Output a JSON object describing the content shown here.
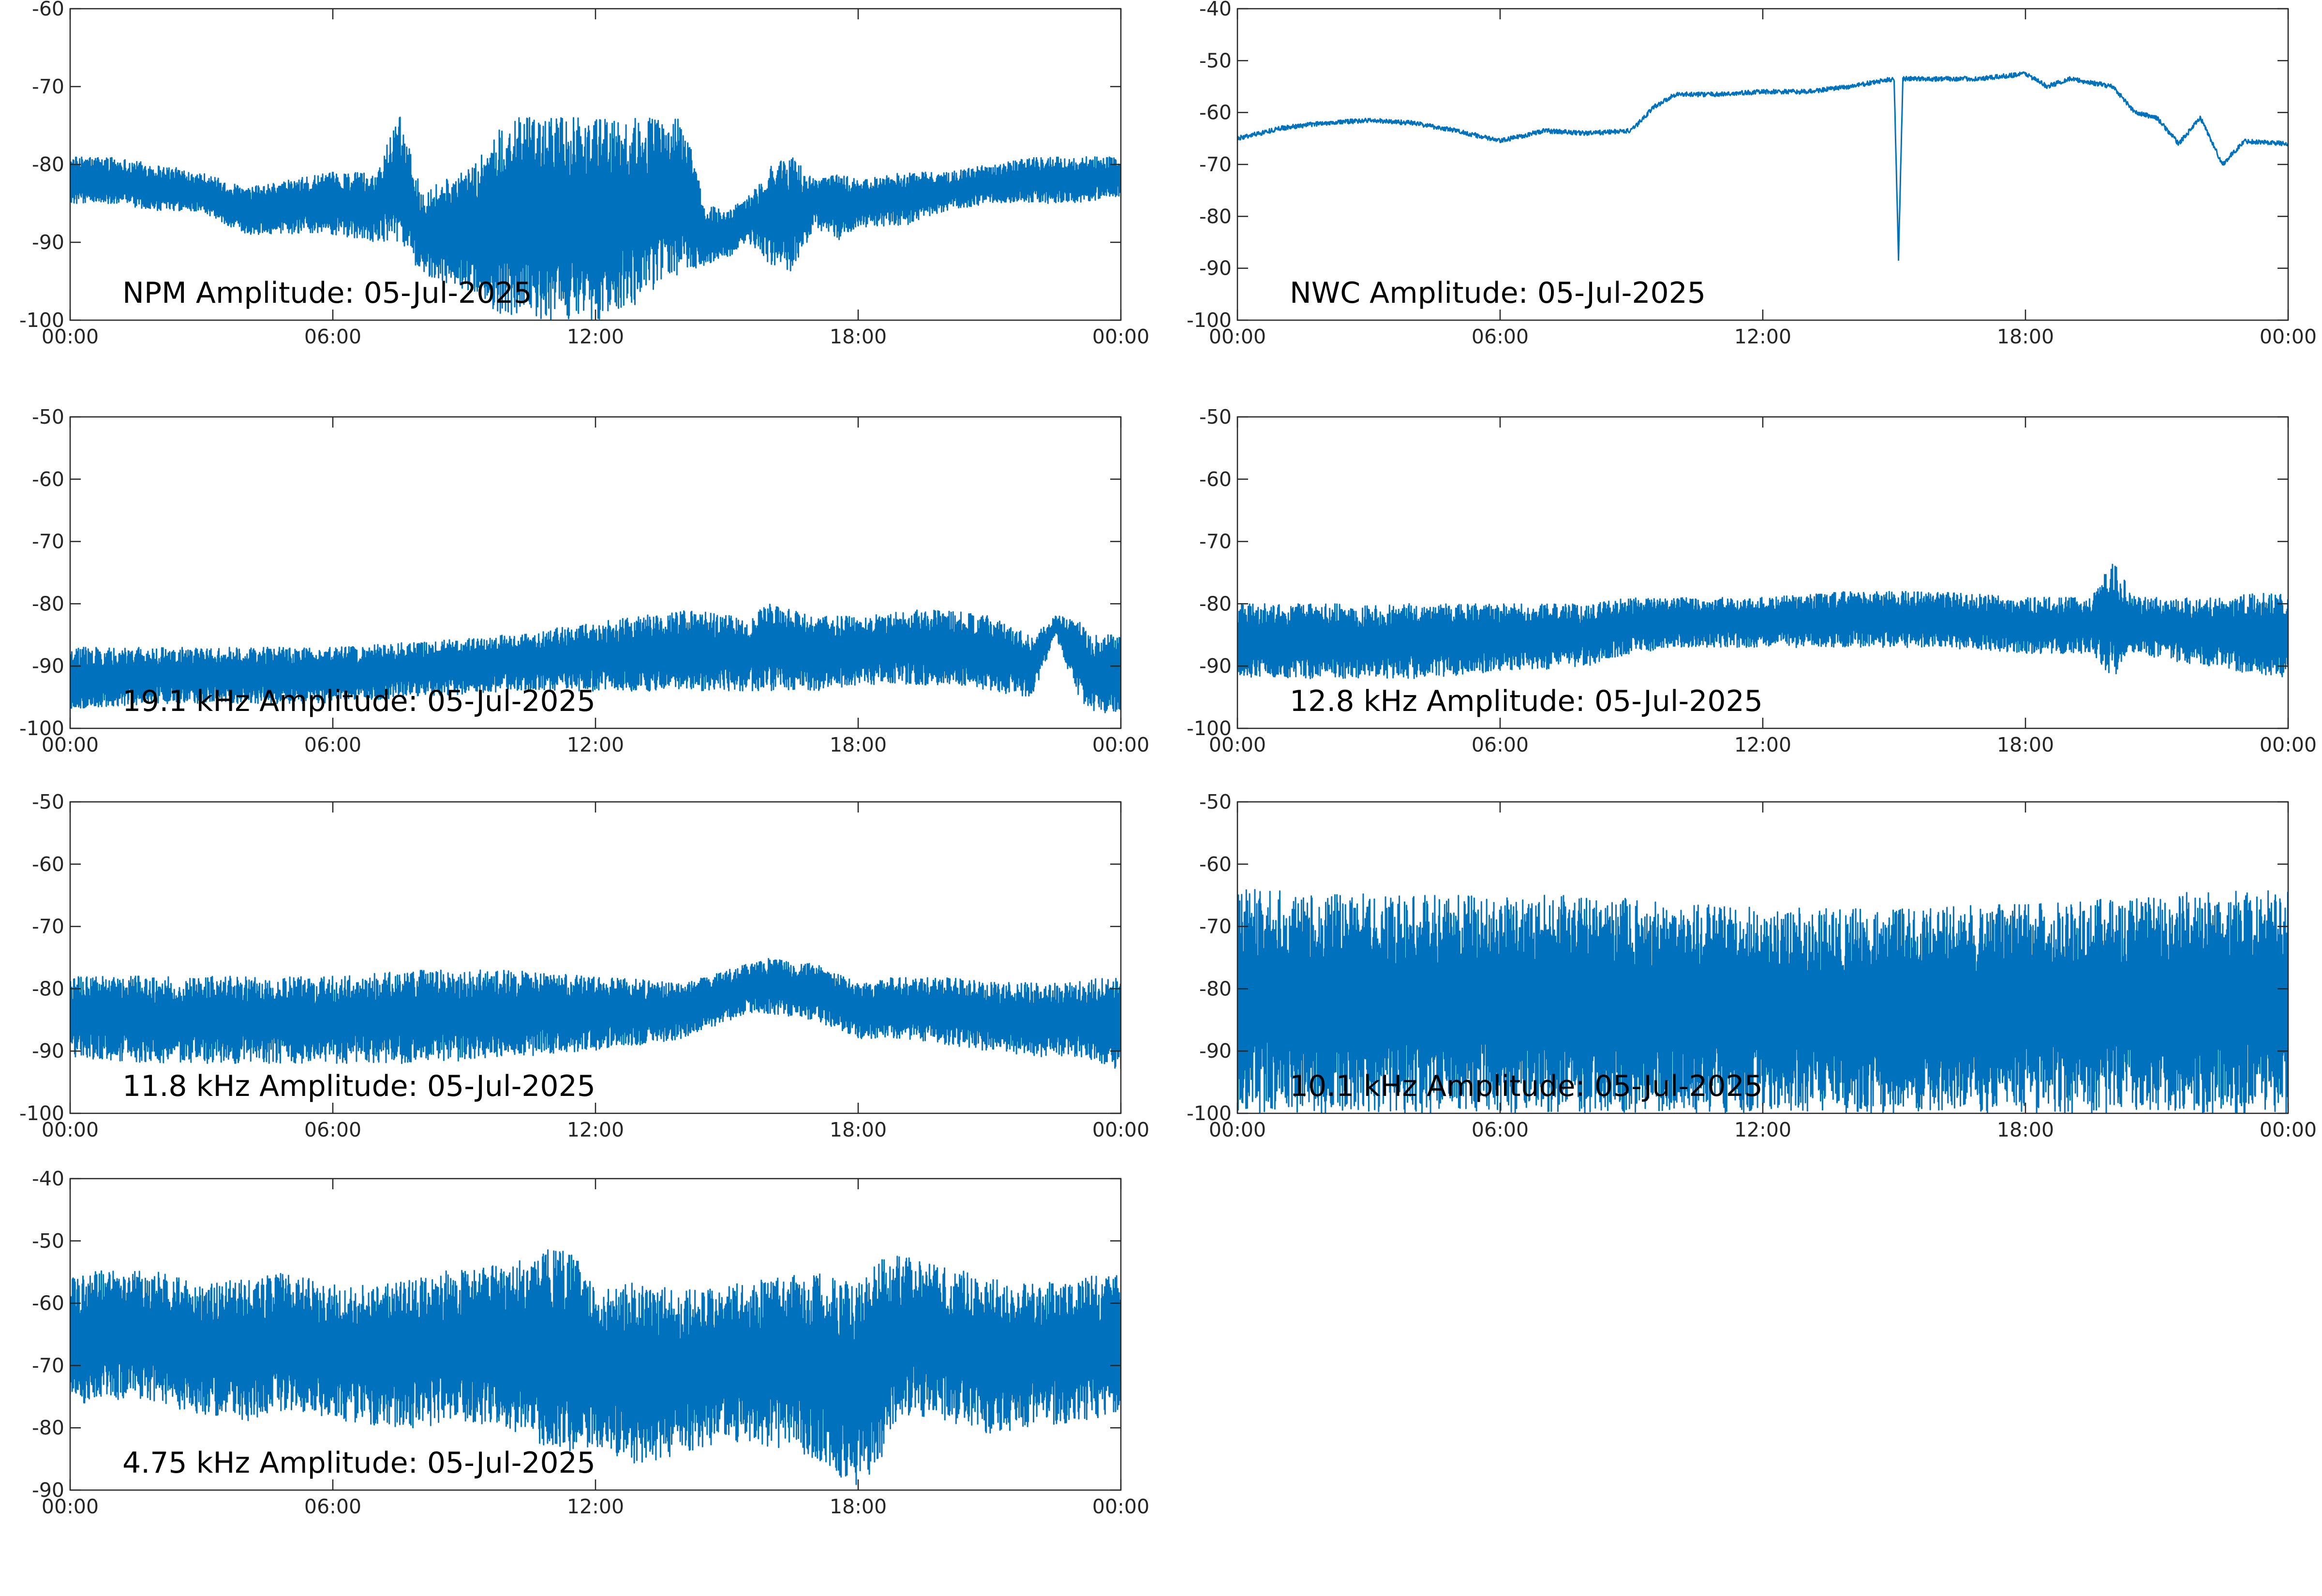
{
  "theme": {
    "series_color": "#0072BD",
    "axis_color": "#262626"
  },
  "chart_data": [
    {
      "type": "line",
      "title": "NPM Amplitude: 05-Jul-2025",
      "x_ticks": [
        "00:00",
        "06:00",
        "12:00",
        "18:00",
        "00:00"
      ],
      "x_range_hours": [
        0,
        24
      ],
      "ylim": [
        -100,
        -60
      ],
      "y_ticks": [
        -60,
        -70,
        -80,
        -90,
        -100
      ],
      "series": [
        {
          "x_hours": [
            0,
            1,
            2,
            3,
            4,
            5,
            6,
            7,
            7.5,
            8,
            9,
            10,
            11,
            12,
            13,
            14,
            14.5,
            15,
            15.5,
            16,
            16.5,
            17,
            17.5,
            18,
            19,
            20,
            21,
            22,
            23,
            24
          ],
          "envelope_upper": [
            -79,
            -79,
            -80,
            -81,
            -83,
            -82,
            -81,
            -81,
            -73,
            -83,
            -81,
            -74,
            -74,
            -74,
            -74,
            -74,
            -85,
            -86,
            -84,
            -80,
            -79,
            -82,
            -81,
            -82,
            -81,
            -81,
            -80,
            -79,
            -79,
            -79
          ],
          "envelope_lower": [
            -85,
            -85,
            -86,
            -86,
            -89,
            -89,
            -89,
            -90,
            -90,
            -94,
            -96,
            -100,
            -100,
            -100,
            -98,
            -94,
            -93,
            -92,
            -90,
            -93,
            -94,
            -88,
            -90,
            -88,
            -88,
            -86,
            -85,
            -85,
            -85,
            -84
          ]
        }
      ]
    },
    {
      "type": "line",
      "title": "NWC Amplitude: 05-Jul-2025",
      "x_ticks": [
        "00:00",
        "06:00",
        "12:00",
        "18:00",
        "00:00"
      ],
      "x_range_hours": [
        0,
        24
      ],
      "ylim": [
        -100,
        -40
      ],
      "y_ticks": [
        -40,
        -50,
        -60,
        -70,
        -80,
        -90,
        -100
      ],
      "series": [
        {
          "x_hours": [
            0,
            1,
            2,
            3,
            4,
            5,
            6,
            7,
            8,
            9,
            9.5,
            10,
            11,
            12,
            13,
            14,
            15,
            15.1,
            15.2,
            16,
            17,
            18,
            18.5,
            19,
            20,
            20.5,
            21,
            21.5,
            22,
            22.5,
            23,
            24
          ],
          "values": [
            -65,
            -63,
            -62,
            -61.5,
            -62,
            -63.5,
            -65.5,
            -63.5,
            -64,
            -63.5,
            -59,
            -56.5,
            -56.5,
            -56,
            -56,
            -55,
            -53.5,
            -88,
            -53.5,
            -53.5,
            -53.5,
            -52.5,
            -55,
            -53.5,
            -55,
            -60,
            -61,
            -66,
            -61,
            -70,
            -65.5,
            -66
          ]
        }
      ]
    },
    {
      "type": "line",
      "title": "19.1 kHz Amplitude: 05-Jul-2025",
      "x_ticks": [
        "00:00",
        "06:00",
        "12:00",
        "18:00",
        "00:00"
      ],
      "x_range_hours": [
        0,
        24
      ],
      "ylim": [
        -100,
        -50
      ],
      "y_ticks": [
        -50,
        -60,
        -70,
        -80,
        -90,
        -100
      ],
      "series": [
        {
          "x_hours": [
            0,
            2,
            4,
            6,
            8,
            10,
            12,
            14,
            15.5,
            16,
            17,
            18,
            19,
            20,
            21,
            22,
            22.5,
            23,
            23.3,
            24
          ],
          "envelope_upper": [
            -87,
            -87,
            -87,
            -87,
            -86,
            -85,
            -83,
            -81,
            -82,
            -80,
            -82,
            -82,
            -81,
            -81,
            -82,
            -85,
            -82,
            -82,
            -85,
            -85
          ],
          "envelope_lower": [
            -97,
            -96,
            -96,
            -96,
            -95,
            -94,
            -94,
            -94,
            -94,
            -94,
            -94,
            -93,
            -93,
            -93,
            -94,
            -95,
            -85,
            -95,
            -97,
            -98
          ]
        }
      ]
    },
    {
      "type": "line",
      "title": "12.8 kHz Amplitude: 05-Jul-2025",
      "x_ticks": [
        "00:00",
        "06:00",
        "12:00",
        "18:00",
        "00:00"
      ],
      "x_range_hours": [
        0,
        24
      ],
      "ylim": [
        -100,
        -50
      ],
      "y_ticks": [
        -50,
        -60,
        -70,
        -80,
        -90,
        -100
      ],
      "series": [
        {
          "x_hours": [
            0,
            2,
            4,
            6,
            8,
            9,
            10,
            12,
            14,
            16,
            18,
            19.5,
            20,
            20.5,
            22,
            24
          ],
          "envelope_upper": [
            -80,
            -80,
            -80,
            -80,
            -80,
            -79,
            -79,
            -79,
            -78,
            -78,
            -79,
            -79,
            -73,
            -79,
            -79,
            -78
          ],
          "envelope_lower": [
            -92,
            -92,
            -92,
            -91,
            -90,
            -88,
            -87,
            -87,
            -87,
            -87,
            -88,
            -88,
            -92,
            -88,
            -90,
            -92
          ]
        }
      ]
    },
    {
      "type": "line",
      "title": "11.8 kHz Amplitude: 05-Jul-2025",
      "x_ticks": [
        "00:00",
        "06:00",
        "12:00",
        "18:00",
        "00:00"
      ],
      "x_range_hours": [
        0,
        24
      ],
      "ylim": [
        -100,
        -50
      ],
      "y_ticks": [
        -50,
        -60,
        -70,
        -80,
        -90,
        -100
      ],
      "series": [
        {
          "x_hours": [
            0,
            2,
            4,
            6,
            8,
            10,
            12,
            14,
            15.5,
            16,
            17,
            18,
            19,
            20,
            21,
            22,
            23,
            24
          ],
          "envelope_upper": [
            -78,
            -78,
            -78,
            -78,
            -77,
            -77,
            -78,
            -79,
            -76,
            -75,
            -76,
            -79,
            -78,
            -78,
            -79,
            -79,
            -79,
            -77
          ],
          "envelope_lower": [
            -91,
            -92,
            -92,
            -92,
            -92,
            -91,
            -90,
            -88,
            -84,
            -84,
            -85,
            -88,
            -88,
            -89,
            -90,
            -91,
            -91,
            -93
          ]
        }
      ]
    },
    {
      "type": "line",
      "title": "10.1 kHz Amplitude: 05-Jul-2025",
      "x_ticks": [
        "00:00",
        "06:00",
        "12:00",
        "18:00",
        "00:00"
      ],
      "x_range_hours": [
        0,
        24
      ],
      "ylim": [
        -100,
        -50
      ],
      "y_ticks": [
        -50,
        -60,
        -70,
        -80,
        -90,
        -100
      ],
      "series": [
        {
          "x_hours": [
            0,
            4,
            8,
            12,
            16,
            20,
            24
          ],
          "envelope_upper": [
            -64,
            -65,
            -65,
            -67,
            -67,
            -65,
            -64
          ],
          "envelope_lower": [
            -100,
            -100,
            -100,
            -100,
            -100,
            -100,
            -100
          ]
        }
      ]
    },
    {
      "type": "line",
      "title": "4.75 kHz Amplitude: 05-Jul-2025",
      "x_ticks": [
        "00:00",
        "06:00",
        "12:00",
        "18:00",
        "00:00"
      ],
      "x_range_hours": [
        0,
        24
      ],
      "ylim": [
        -90,
        -40
      ],
      "y_ticks": [
        -40,
        -50,
        -60,
        -70,
        -80,
        -90
      ],
      "series": [
        {
          "x_hours": [
            0,
            1,
            2,
            3,
            4,
            5,
            6,
            7,
            8,
            9,
            10,
            11,
            11.5,
            12,
            13,
            14,
            15,
            16,
            17,
            18,
            18.5,
            19,
            20,
            21,
            22,
            23,
            24
          ],
          "envelope_upper": [
            -56,
            -54,
            -55,
            -57,
            -56,
            -55,
            -57,
            -57,
            -56,
            -54,
            -54,
            -51,
            -52,
            -58,
            -56,
            -58,
            -57,
            -56,
            -55,
            -57,
            -53,
            -52,
            -54,
            -56,
            -57,
            -56,
            -55
          ],
          "envelope_lower": [
            -76,
            -76,
            -76,
            -78,
            -79,
            -77,
            -79,
            -80,
            -80,
            -79,
            -80,
            -84,
            -84,
            -83,
            -86,
            -84,
            -82,
            -83,
            -85,
            -90,
            -86,
            -78,
            -79,
            -81,
            -80,
            -79,
            -78
          ]
        }
      ]
    }
  ]
}
